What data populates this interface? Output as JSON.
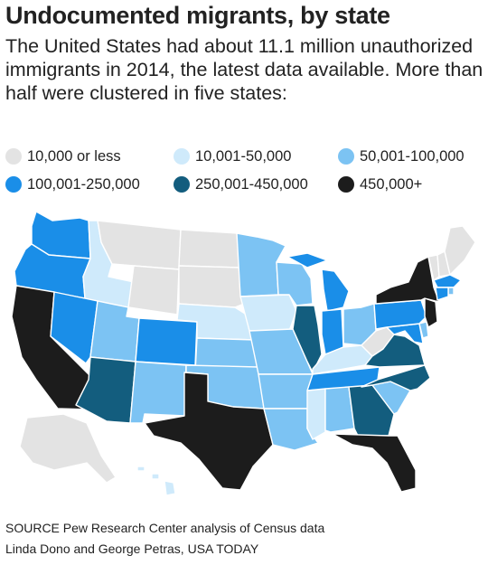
{
  "header": {
    "title": "Undocumented migrants, by state",
    "subtitle": "The United States had about 11.1 million unauthorized immigrants in 2014, the latest data available. More than half were clustered in five states:"
  },
  "legend": {
    "rows": [
      [
        {
          "label": "10,000 or less",
          "color": "#e3e3e3"
        },
        {
          "label": "10,001-50,000",
          "color": "#cfeafb"
        },
        {
          "label": "50,001-100,000",
          "color": "#7cc3f3"
        }
      ],
      [
        {
          "label": "100,001-250,000",
          "color": "#1a8ee8"
        },
        {
          "label": "250,001-450,000",
          "color": "#135d7e"
        },
        {
          "label": "450,000+",
          "color": "#1c1c1c"
        }
      ]
    ]
  },
  "map": {
    "categories": {
      "le10k": "#e3e3e3",
      "r10_50k": "#cfeafb",
      "r50_100k": "#7cc3f3",
      "r100_250k": "#1a8ee8",
      "r250_450k": "#135d7e",
      "r450k_plus": "#1c1c1c"
    }
  },
  "footer": {
    "source": "SOURCE Pew Research Center analysis of Census data",
    "credit": "Linda Dono and George Petras, USA TODAY"
  }
}
